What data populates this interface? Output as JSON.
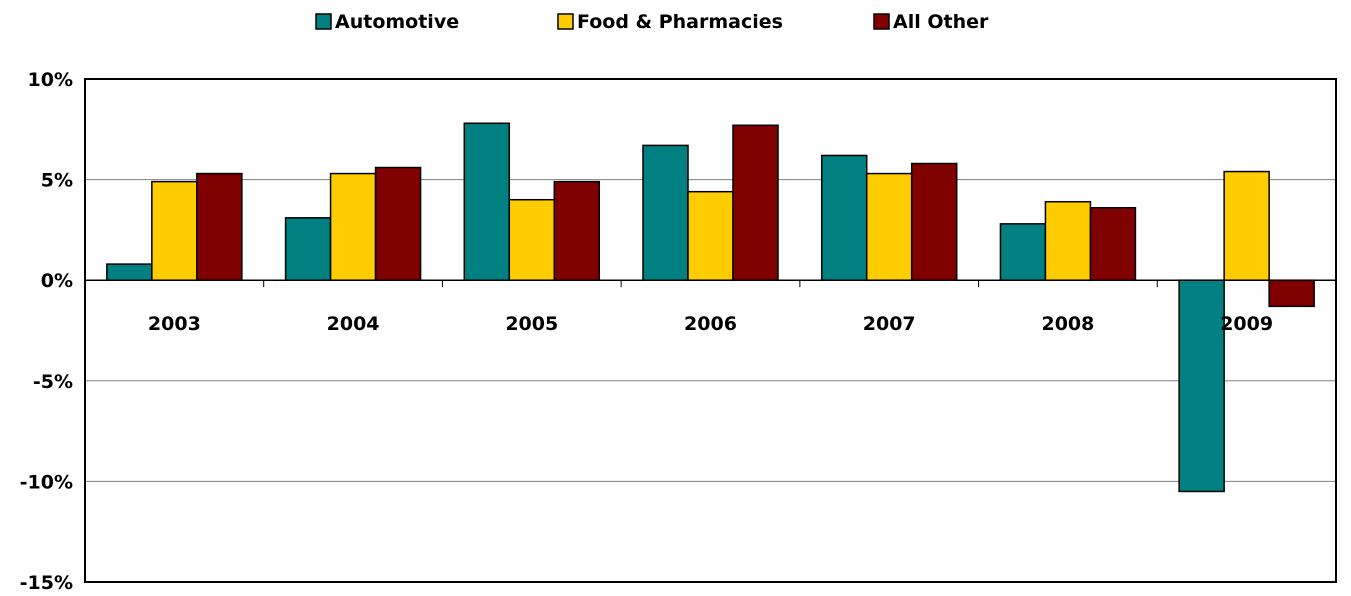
{
  "chart_data": {
    "type": "bar",
    "title": "",
    "xlabel": "",
    "ylabel": "",
    "categories": [
      "2003",
      "2004",
      "2005",
      "2006",
      "2007",
      "2008",
      "2009"
    ],
    "series": [
      {
        "name": "Automotive",
        "color": "#008080",
        "values": [
          0.8,
          3.1,
          7.8,
          6.7,
          6.2,
          2.8,
          -10.5
        ]
      },
      {
        "name": "Food & Pharmacies",
        "color": "#FFCC00",
        "values": [
          4.9,
          5.3,
          4.0,
          4.4,
          5.3,
          3.9,
          5.4
        ]
      },
      {
        "name": "All Other",
        "color": "#800000",
        "values": [
          5.3,
          5.6,
          4.9,
          7.7,
          5.8,
          3.6,
          -1.3
        ]
      }
    ],
    "ylim": [
      -15,
      10
    ],
    "yticks": [
      -15,
      -10,
      -5,
      0,
      5,
      10
    ],
    "ytick_labels": [
      "-15%",
      "-10%",
      "-5%",
      "0%",
      "5%",
      "10%"
    ],
    "grid": true,
    "legend_position": "top-center"
  }
}
